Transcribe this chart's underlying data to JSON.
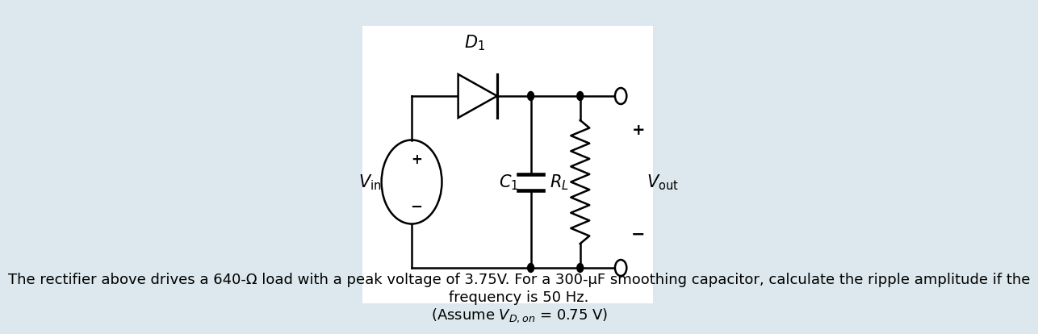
{
  "background_color": "#dce8ed",
  "circuit_box_color": "#ffffff",
  "line1": "The rectifier above drives a 640-Ω load with a peak voltage of 3.75V. For a 300-μF smoothing capacitor, calculate the ripple amplitude if the",
  "line2": "frequency is 50 Hz.",
  "line3": "(Assume Vᴅ,on = 0.75 V)",
  "text_fontsize": 13.5
}
